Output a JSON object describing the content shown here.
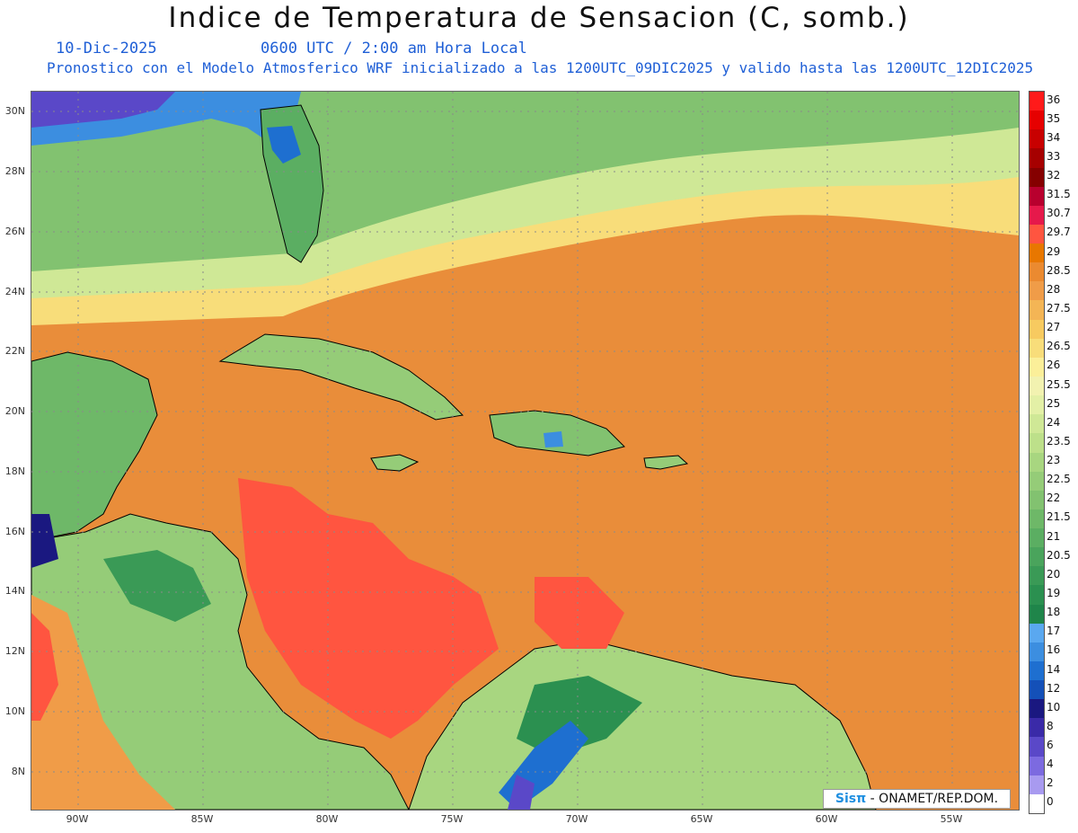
{
  "header": {
    "title": "Indice de Temperatura de Sensacion (C, somb.)",
    "date": "10-Dic-2025",
    "time": "0600 UTC / 2:00 am Hora Local",
    "subtitle": "Pronostico con el Modelo Atmosferico WRF inicializado a las 1200UTC_09DIC2025 y valido hasta las  1200UTC_12DIC2025"
  },
  "map": {
    "lat_labels": [
      "30N",
      "28N",
      "26N",
      "24N",
      "22N",
      "20N",
      "18N",
      "16N",
      "14N",
      "12N",
      "10N",
      "8N"
    ],
    "lon_labels": [
      "90W",
      "85W",
      "80W",
      "75W",
      "70W",
      "65W",
      "60W",
      "55W"
    ],
    "credit_brand": "Sisπ",
    "credit_text": "- ONAMET/REP.DOM."
  },
  "colorbar": {
    "levels": [
      {
        "label": "36",
        "color": "#ff1a1a"
      },
      {
        "label": "35",
        "color": "#e60000"
      },
      {
        "label": "34",
        "color": "#c80000"
      },
      {
        "label": "33",
        "color": "#a60000"
      },
      {
        "label": "32",
        "color": "#850000"
      },
      {
        "label": "31.5",
        "color": "#b8002e"
      },
      {
        "label": "30.7",
        "color": "#e6194b"
      },
      {
        "label": "29.7",
        "color": "#ff5540"
      },
      {
        "label": "29",
        "color": "#e87700"
      },
      {
        "label": "28.5",
        "color": "#eb8a30"
      },
      {
        "label": "28",
        "color": "#f09c48"
      },
      {
        "label": "27.5",
        "color": "#f4b555"
      },
      {
        "label": "27",
        "color": "#f7ca60"
      },
      {
        "label": "26.5",
        "color": "#f8dd7a"
      },
      {
        "label": "26",
        "color": "#fbef99"
      },
      {
        "label": "25.5",
        "color": "#f2f2b0"
      },
      {
        "label": "25",
        "color": "#e3f0a6"
      },
      {
        "label": "24",
        "color": "#cfe896"
      },
      {
        "label": "23.5",
        "color": "#bde08a"
      },
      {
        "label": "23",
        "color": "#a8d680"
      },
      {
        "label": "22.5",
        "color": "#95cc78"
      },
      {
        "label": "22",
        "color": "#82c270"
      },
      {
        "label": "21.5",
        "color": "#6eb868"
      },
      {
        "label": "21",
        "color": "#5bae62"
      },
      {
        "label": "20.5",
        "color": "#4aa45c"
      },
      {
        "label": "20",
        "color": "#3a9a56"
      },
      {
        "label": "19",
        "color": "#2b9050"
      },
      {
        "label": "18",
        "color": "#1f854a"
      },
      {
        "label": "17",
        "color": "#5aa8f0"
      },
      {
        "label": "16",
        "color": "#3c8ee0"
      },
      {
        "label": "14",
        "color": "#1e6fd0"
      },
      {
        "label": "12",
        "color": "#1450b8"
      },
      {
        "label": "10",
        "color": "#1a1880"
      },
      {
        "label": "8",
        "color": "#3a2aa8"
      },
      {
        "label": "6",
        "color": "#5a48c8"
      },
      {
        "label": "4",
        "color": "#7c6ae0"
      },
      {
        "label": "2",
        "color": "#a89af0"
      },
      {
        "label": "0",
        "color": "#ffffff"
      }
    ]
  }
}
